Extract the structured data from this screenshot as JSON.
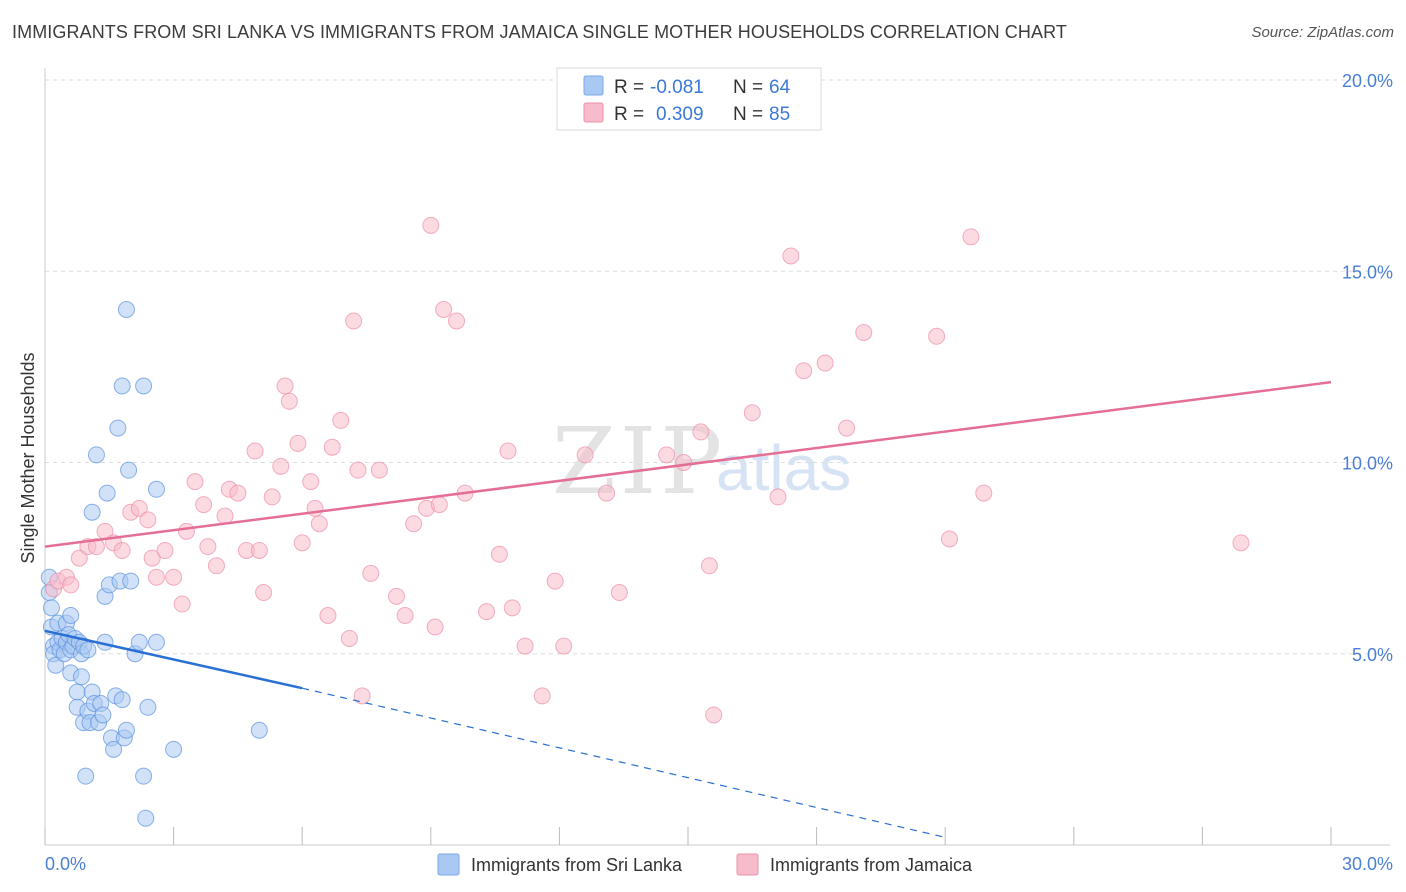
{
  "title": "IMMIGRANTS FROM SRI LANKA VS IMMIGRANTS FROM JAMAICA SINGLE MOTHER HOUSEHOLDS CORRELATION CHART",
  "source": "Source: ZipAtlas.com",
  "watermark": {
    "zip": "ZIP",
    "atlas": "atlas"
  },
  "legend": [
    {
      "r_label": "R =",
      "r_value": "-0.081",
      "n_label": "N =",
      "n_value": "64",
      "color": "#a9c8f2",
      "stroke": "#7aa8e6"
    },
    {
      "r_label": "R =",
      "r_value": "0.309",
      "n_label": "N =",
      "n_value": "85",
      "color": "#f7bccb",
      "stroke": "#ee90a8"
    }
  ],
  "colors": {
    "blue_point": "#a9c8f2",
    "blue_stroke": "#5c93de",
    "blue_line": "#2a6fd4",
    "pink_point": "#f7bccb",
    "pink_stroke": "#ec8fa9",
    "pink_line": "#e46e96",
    "tick_text": "#4a7fd4",
    "grid": "#dddddd"
  },
  "chart_data": {
    "type": "scatter",
    "title": "IMMIGRANTS FROM SRI LANKA VS IMMIGRANTS FROM JAMAICA SINGLE MOTHER HOUSEHOLDS CORRELATION CHART",
    "xlabel": "",
    "ylabel": "Single Mother Households",
    "xlim": [
      0,
      30
    ],
    "ylim": [
      0,
      20
    ],
    "x_tick_labels": [
      "0.0%",
      "30.0%"
    ],
    "y_tick_labels": [
      "5.0%",
      "10.0%",
      "15.0%",
      "20.0%"
    ],
    "y_ticks": [
      5,
      10,
      15,
      20
    ],
    "grid": true,
    "legend_position": "top-center",
    "series": [
      {
        "name": "Immigrants from Sri Lanka",
        "color": "#a9c8f2",
        "trend": {
          "x": [
            0,
            6
          ],
          "y": [
            5.6,
            4.1
          ],
          "extended_to": [
            21,
            0.2
          ]
        },
        "points": [
          [
            0.1,
            7.0
          ],
          [
            0.1,
            6.6
          ],
          [
            0.15,
            6.2
          ],
          [
            0.15,
            5.7
          ],
          [
            0.2,
            5.2
          ],
          [
            0.2,
            5.0
          ],
          [
            0.25,
            4.7
          ],
          [
            0.3,
            5.8
          ],
          [
            0.3,
            5.3
          ],
          [
            0.35,
            5.1
          ],
          [
            0.4,
            5.4
          ],
          [
            0.45,
            5.0
          ],
          [
            0.5,
            5.8
          ],
          [
            0.5,
            5.3
          ],
          [
            0.55,
            5.5
          ],
          [
            0.6,
            5.1
          ],
          [
            0.6,
            4.5
          ],
          [
            0.65,
            5.2
          ],
          [
            0.7,
            5.4
          ],
          [
            0.75,
            4.0
          ],
          [
            0.75,
            3.6
          ],
          [
            0.8,
            5.3
          ],
          [
            0.85,
            4.4
          ],
          [
            0.85,
            5.0
          ],
          [
            0.9,
            3.2
          ],
          [
            0.9,
            5.2
          ],
          [
            1.0,
            5.1
          ],
          [
            1.0,
            3.5
          ],
          [
            1.05,
            3.2
          ],
          [
            1.1,
            8.7
          ],
          [
            1.1,
            4.0
          ],
          [
            1.15,
            3.7
          ],
          [
            1.2,
            10.2
          ],
          [
            1.25,
            3.2
          ],
          [
            1.3,
            3.7
          ],
          [
            1.35,
            3.4
          ],
          [
            1.4,
            5.3
          ],
          [
            1.4,
            6.5
          ],
          [
            1.45,
            9.2
          ],
          [
            1.5,
            6.8
          ],
          [
            1.55,
            2.8
          ],
          [
            1.6,
            2.5
          ],
          [
            1.65,
            3.9
          ],
          [
            1.7,
            10.9
          ],
          [
            1.75,
            6.9
          ],
          [
            1.8,
            12.0
          ],
          [
            1.8,
            3.8
          ],
          [
            1.85,
            2.8
          ],
          [
            1.9,
            14.0
          ],
          [
            1.9,
            3.0
          ],
          [
            1.95,
            9.8
          ],
          [
            2.0,
            6.9
          ],
          [
            2.1,
            5.0
          ],
          [
            2.2,
            5.3
          ],
          [
            2.3,
            12.0
          ],
          [
            2.4,
            3.6
          ],
          [
            2.6,
            9.3
          ],
          [
            2.6,
            5.3
          ],
          [
            0.95,
            1.8
          ],
          [
            2.35,
            0.7
          ],
          [
            2.3,
            1.8
          ],
          [
            3.0,
            2.5
          ],
          [
            5.0,
            3.0
          ],
          [
            0.6,
            6.0
          ]
        ]
      },
      {
        "name": "Immigrants from Jamaica",
        "color": "#f7bccb",
        "trend": {
          "x": [
            0,
            30
          ],
          "y": [
            7.8,
            12.1
          ]
        },
        "points": [
          [
            0.2,
            6.7
          ],
          [
            0.3,
            6.9
          ],
          [
            0.5,
            7.0
          ],
          [
            0.6,
            6.8
          ],
          [
            0.8,
            7.5
          ],
          [
            1.0,
            7.8
          ],
          [
            1.2,
            7.8
          ],
          [
            1.4,
            8.2
          ],
          [
            1.6,
            7.9
          ],
          [
            1.8,
            7.7
          ],
          [
            2.0,
            8.7
          ],
          [
            2.2,
            8.8
          ],
          [
            2.4,
            8.5
          ],
          [
            2.5,
            7.5
          ],
          [
            2.6,
            7.0
          ],
          [
            2.8,
            7.7
          ],
          [
            3.0,
            7.0
          ],
          [
            3.2,
            6.3
          ],
          [
            3.3,
            8.2
          ],
          [
            3.5,
            9.5
          ],
          [
            3.7,
            8.9
          ],
          [
            3.8,
            7.8
          ],
          [
            4.0,
            7.3
          ],
          [
            4.2,
            8.6
          ],
          [
            4.3,
            9.3
          ],
          [
            4.5,
            9.2
          ],
          [
            4.7,
            7.7
          ],
          [
            4.9,
            10.3
          ],
          [
            5.0,
            7.7
          ],
          [
            5.1,
            6.6
          ],
          [
            5.3,
            9.1
          ],
          [
            5.5,
            9.9
          ],
          [
            5.6,
            12.0
          ],
          [
            5.7,
            11.6
          ],
          [
            5.9,
            10.5
          ],
          [
            6.0,
            7.9
          ],
          [
            6.2,
            9.5
          ],
          [
            6.3,
            8.8
          ],
          [
            6.4,
            8.4
          ],
          [
            6.6,
            6.0
          ],
          [
            6.7,
            10.4
          ],
          [
            6.9,
            11.1
          ],
          [
            7.1,
            5.4
          ],
          [
            7.2,
            13.7
          ],
          [
            7.3,
            9.8
          ],
          [
            7.4,
            3.9
          ],
          [
            7.6,
            7.1
          ],
          [
            7.8,
            9.8
          ],
          [
            8.2,
            6.5
          ],
          [
            8.4,
            6.0
          ],
          [
            8.6,
            8.4
          ],
          [
            8.9,
            8.8
          ],
          [
            9.0,
            16.2
          ],
          [
            9.1,
            5.7
          ],
          [
            9.2,
            8.9
          ],
          [
            9.3,
            14.0
          ],
          [
            9.6,
            13.7
          ],
          [
            9.8,
            9.2
          ],
          [
            10.3,
            6.1
          ],
          [
            10.6,
            7.6
          ],
          [
            10.8,
            10.3
          ],
          [
            10.9,
            6.2
          ],
          [
            11.2,
            5.2
          ],
          [
            11.6,
            3.9
          ],
          [
            11.9,
            6.9
          ],
          [
            12.1,
            5.2
          ],
          [
            12.6,
            10.2
          ],
          [
            13.1,
            9.2
          ],
          [
            13.4,
            6.6
          ],
          [
            14.5,
            10.2
          ],
          [
            14.9,
            10.0
          ],
          [
            15.3,
            10.8
          ],
          [
            15.5,
            7.3
          ],
          [
            15.6,
            3.4
          ],
          [
            16.5,
            11.3
          ],
          [
            17.1,
            9.1
          ],
          [
            17.4,
            15.4
          ],
          [
            17.7,
            12.4
          ],
          [
            18.2,
            12.6
          ],
          [
            18.7,
            10.9
          ],
          [
            19.1,
            13.4
          ],
          [
            20.8,
            13.3
          ],
          [
            21.1,
            8.0
          ],
          [
            21.6,
            15.9
          ],
          [
            21.9,
            9.2
          ],
          [
            27.9,
            7.9
          ]
        ]
      }
    ]
  },
  "bottom_legend": [
    {
      "label": "Immigrants from Sri Lanka",
      "color": "#a9c8f2",
      "stroke": "#7aa8e6"
    },
    {
      "label": "Immigrants from Jamaica",
      "color": "#f7bccb",
      "stroke": "#ee90a8"
    }
  ]
}
